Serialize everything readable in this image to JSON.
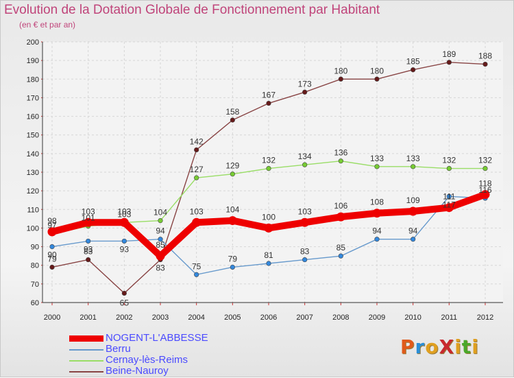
{
  "title": "Evolution de la Dotation Globale de Fonctionnement par Habitant",
  "subtitle": "(en € et par an)",
  "logo": {
    "text": "ProXiti",
    "letter_colors": [
      "#e05a1a",
      "#2a8fd8",
      "#e0a020",
      "#c8282e",
      "#e0a020",
      "#4aa82a",
      "#e0a020"
    ]
  },
  "chart_data": {
    "type": "line",
    "title": "Evolution de la Dotation Globale de Fonctionnement par Habitant",
    "subtitle": "(en € et par an)",
    "xlabel": "",
    "ylabel": "",
    "x": [
      2000,
      2001,
      2002,
      2003,
      2004,
      2005,
      2006,
      2007,
      2008,
      2009,
      2010,
      2011,
      2012
    ],
    "ylim": [
      60,
      200
    ],
    "yticks": [
      60,
      70,
      80,
      90,
      100,
      110,
      120,
      130,
      140,
      150,
      160,
      170,
      180,
      190,
      200
    ],
    "grid": true,
    "legend_position": "bottom-left",
    "series": [
      {
        "name": "NOGENT-L'ABBESSE",
        "color": "#ee0000",
        "emphasis": true,
        "values": [
          98,
          103,
          103,
          85,
          103,
          104,
          100,
          103,
          106,
          108,
          109,
          111,
          118
        ],
        "labels": [
          "98",
          "103",
          "103",
          "85",
          "103",
          "104",
          "100",
          "103",
          "106",
          "108",
          "109",
          "111",
          "118"
        ]
      },
      {
        "name": "Berru",
        "color": "#6699cc",
        "marker": "#3388dd",
        "values": [
          90,
          93,
          93,
          94,
          75,
          79,
          81,
          83,
          85,
          94,
          94,
          117,
          116
        ],
        "labels": [
          "90",
          "93",
          "93",
          "94",
          "75",
          "79",
          "81",
          "83",
          "85",
          "94",
          "94",
          "117",
          "116"
        ]
      },
      {
        "name": "Cernay-lès-Reims",
        "color": "#99dd66",
        "marker": "#77cc33",
        "values": [
          97,
          101,
          103,
          104,
          127,
          129,
          132,
          134,
          136,
          133,
          133,
          132,
          132
        ],
        "labels": [
          "97",
          "101",
          "103",
          "104",
          "127",
          "129",
          "132",
          "134",
          "136",
          "133",
          "133",
          "132",
          "132"
        ]
      },
      {
        "name": "Beine-Nauroy",
        "color": "#884444",
        "marker": "#661a1a",
        "values": [
          79,
          83,
          65,
          83,
          142,
          158,
          167,
          173,
          180,
          180,
          185,
          189,
          188
        ],
        "labels": [
          "79",
          "83",
          "65",
          "83",
          "142",
          "158",
          "167",
          "173",
          "180",
          "180",
          "185",
          "189",
          "188"
        ]
      }
    ]
  }
}
